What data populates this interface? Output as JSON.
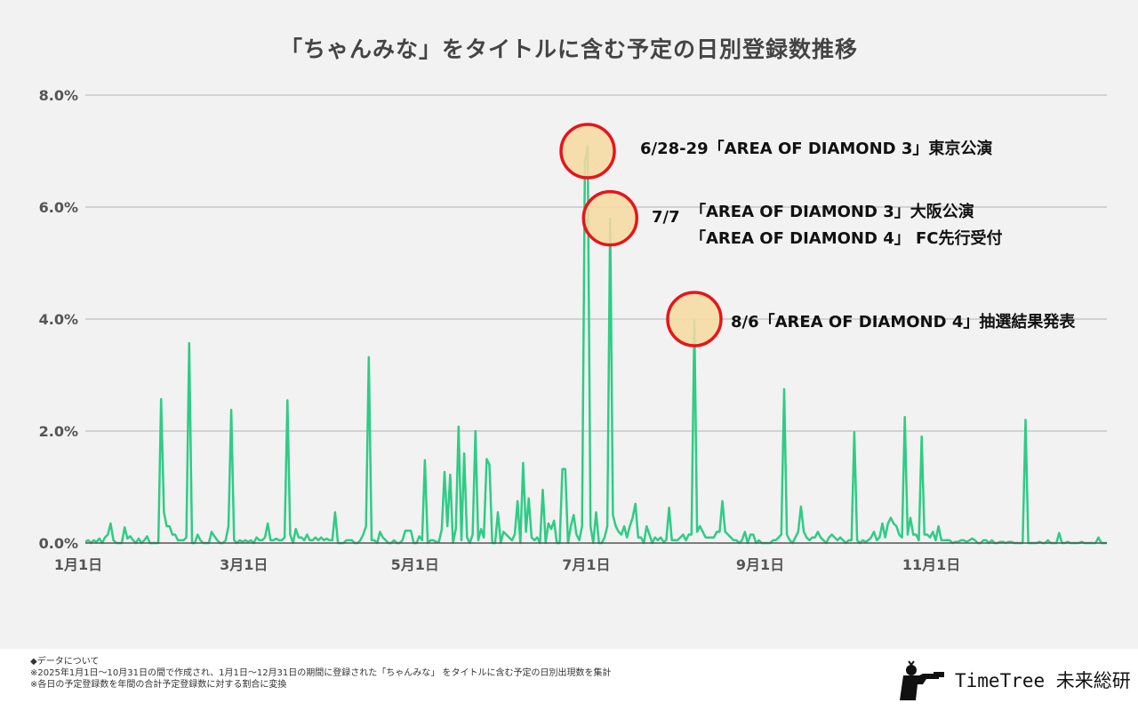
{
  "chart_data": {
    "type": "line",
    "title": "「ちゃんみな」をタイトルに含む予定の日別登録数推移",
    "xlabel": "",
    "ylabel": "",
    "ylim": [
      0,
      8
    ],
    "y_ticks": [
      "0.0%",
      "2.0%",
      "4.0%",
      "6.0%",
      "8.0%"
    ],
    "x_ticks": [
      {
        "label": "1月1日",
        "date": "01-01"
      },
      {
        "label": "3月1日",
        "date": "03-01"
      },
      {
        "label": "5月1日",
        "date": "05-01"
      },
      {
        "label": "7月1日",
        "date": "07-01"
      },
      {
        "label": "9月1日",
        "date": "09-01"
      },
      {
        "label": "11月1日",
        "date": "11-01"
      }
    ],
    "x_range": [
      "01-01",
      "12-31"
    ],
    "grid": true,
    "line_color": "#2ecc85",
    "series": [
      {
        "values": [
          0.02,
          0.05,
          0.0,
          0.05,
          0.02,
          0.08,
          0.0,
          0.1,
          0.15,
          0.35,
          0.05,
          0.0,
          0.0,
          0.0,
          0.28,
          0.08,
          0.12,
          0.05,
          0.0,
          0.08,
          0.0,
          0.05,
          0.12,
          0.0,
          0.0,
          0.0,
          0.0,
          2.57,
          0.55,
          0.3,
          0.3,
          0.15,
          0.15,
          0.05,
          0.05,
          0.05,
          0.1,
          3.57,
          0.0,
          0.0,
          0.15,
          0.05,
          0.0,
          0.0,
          0.0,
          0.2,
          0.12,
          0.05,
          0.0,
          0.0,
          0.05,
          0.3,
          2.38,
          0.05,
          0.0,
          0.05,
          0.02,
          0.05,
          0.02,
          0.05,
          0.0,
          0.1,
          0.05,
          0.05,
          0.1,
          0.35,
          0.05,
          0.05,
          0.08,
          0.05,
          0.05,
          0.1,
          2.55,
          0.15,
          0.0,
          0.25,
          0.1,
          0.1,
          0.05,
          0.15,
          0.05,
          0.05,
          0.1,
          0.05,
          0.1,
          0.05,
          0.08,
          0.05,
          0.05,
          0.55,
          0.0,
          0.0,
          0.0,
          0.05,
          0.05,
          0.05,
          0.0,
          0.0,
          0.05,
          0.15,
          0.3,
          3.32,
          0.05,
          0.05,
          0.0,
          0.2,
          0.1,
          0.05,
          0.0,
          0.0,
          0.05,
          0.0,
          0.0,
          0.05,
          0.22,
          0.22,
          0.22,
          0.0,
          0.0,
          0.12,
          0.05,
          1.48,
          0.0,
          0.05,
          0.05,
          0.02,
          0.02,
          0.25,
          1.27,
          0.3,
          1.22,
          0.0,
          0.25,
          2.08,
          0.05,
          1.6,
          0.1,
          0.0,
          0.15,
          2.0,
          0.05,
          0.25,
          0.1,
          1.5,
          1.4,
          0.0,
          0.0,
          0.55,
          0.0,
          0.2,
          0.15,
          0.1,
          0.05,
          0.15,
          0.75,
          0.0,
          1.43,
          0.2,
          0.8,
          0.1,
          0.05,
          0.1,
          0.0,
          0.95,
          0.0,
          0.35,
          0.25,
          0.4,
          0.0,
          0.0,
          1.32,
          1.32,
          0.0,
          0.3,
          0.5,
          0.15,
          0.05,
          0.3,
          6.8,
          7.1,
          0.3,
          0.0,
          0.55,
          0.0,
          0.0,
          0.1,
          0.3,
          5.8,
          0.5,
          0.3,
          0.2,
          0.15,
          0.3,
          0.1,
          0.3,
          0.45,
          0.7,
          0.1,
          0.1,
          0.0,
          0.3,
          0.15,
          0.0,
          0.1,
          0.05,
          0.1,
          0.02,
          0.05,
          0.63,
          0.05,
          0.05,
          0.05,
          0.1,
          0.15,
          0.05,
          0.15,
          0.15,
          3.98,
          0.2,
          0.3,
          0.2,
          0.1,
          0.1,
          0.1,
          0.1,
          0.2,
          0.2,
          0.75,
          0.2,
          0.15,
          0.1,
          0.05,
          0.05,
          0.0,
          0.05,
          0.2,
          0.0,
          0.15,
          0.15,
          0.0,
          0.05,
          0.0,
          0.0,
          0.0,
          0.0,
          0.05,
          0.05,
          0.1,
          0.15,
          2.75,
          0.15,
          0.05,
          0.0,
          0.1,
          0.2,
          0.65,
          0.2,
          0.1,
          0.05,
          0.1,
          0.1,
          0.2,
          0.1,
          0.05,
          0.0,
          0.1,
          0.15,
          0.1,
          0.05,
          0.1,
          0.05,
          0.0,
          0.05,
          0.05,
          1.98,
          0.05,
          0.0,
          0.05,
          0.02,
          0.05,
          0.1,
          0.2,
          0.05,
          0.1,
          0.35,
          0.1,
          0.35,
          0.45,
          0.35,
          0.3,
          0.15,
          0.1,
          2.25,
          0.15,
          0.45,
          0.15,
          0.15,
          0.05,
          1.9,
          0.15,
          0.15,
          0.1,
          0.2,
          0.05,
          0.3,
          0.05,
          0.05,
          0.05,
          0.05,
          0.0,
          0.02,
          0.02,
          0.05,
          0.05,
          0.02,
          0.05,
          0.08,
          0.05,
          0.0,
          0.0,
          0.05,
          0.05,
          0.0,
          0.05,
          0.0,
          0.0,
          0.02,
          0.02,
          0.0,
          0.02,
          0.02,
          0.0,
          0.0,
          0.0,
          0.0,
          2.2,
          0.0,
          0.0,
          0.0,
          0.0,
          0.02,
          0.0,
          0.0,
          0.05,
          0.0,
          0.0,
          0.0,
          0.18,
          0.0,
          0.0,
          0.02,
          0.0,
          0.0,
          0.0,
          0.0,
          0.02,
          0.0,
          0.0,
          0.0,
          0.0,
          0.0,
          0.1,
          0.0,
          0.0,
          0.0
        ]
      }
    ],
    "annotations": [
      {
        "date": "06-29",
        "value": 7.0,
        "label": "6/28-29「AREA OF DIAMOND 3」東京公演"
      },
      {
        "date": "07-07",
        "value": 5.8,
        "date_label": "7/7",
        "lines": [
          "「AREA OF DIAMOND 3」大阪公演",
          "「AREA OF DIAMOND 4」 FC先行受付"
        ]
      },
      {
        "date": "08-06",
        "value": 4.0,
        "label": "8/6「AREA OF DIAMOND 4」抽選結果発表"
      }
    ],
    "highlight_fill": "#f7dba0",
    "highlight_stroke": "#e8141b"
  },
  "notes": {
    "heading": "◆データについて",
    "line1": "※2025年1月1日～10月31日の間で作成され、1月1日～12月31日の期間に登録された「ちゃんみな」 をタイトルに含む予定の日別出現数を集計",
    "line2": "※各日の予定登録数を年間の合計予定登録数に対する割合に変換"
  },
  "logo": {
    "text": "TimeTree 未来総研"
  }
}
